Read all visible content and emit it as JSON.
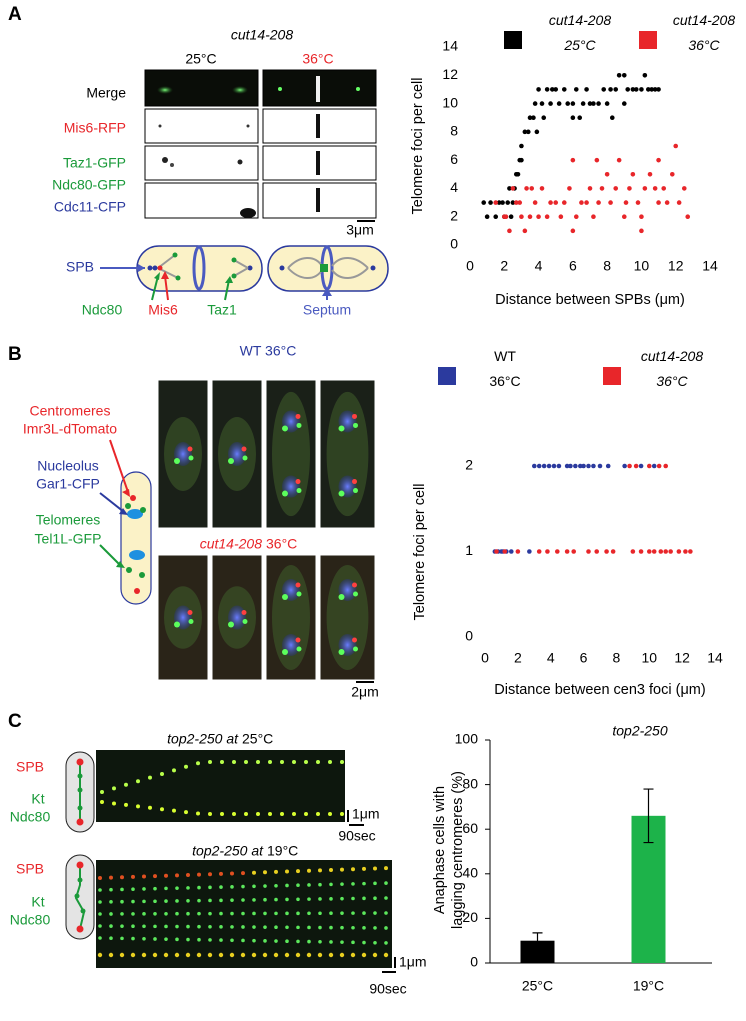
{
  "panel_labels": [
    "A",
    "B",
    "C"
  ],
  "panel_a": {
    "strain": "cut14-208",
    "temps": [
      "25°C",
      "36°C"
    ],
    "rows": [
      "Merge",
      "Mis6-RFP",
      "Taz1-GFP",
      "Ndc80-GFP",
      "Cdc11-CFP"
    ],
    "scale_bar": "3μm",
    "diagram": {
      "spb": "SPB",
      "ndc80": "Ndc80",
      "mis6": "Mis6",
      "taz1": "Taz1",
      "septum": "Septum"
    }
  },
  "panel_b": {
    "wt_title": "WT 36°C",
    "mutant_strain": "cut14-208",
    "mutant_temp": "36°C",
    "labels": [
      "Centromeres",
      "Imr3L-dTomato",
      "Nucleolus",
      "Gar1-CFP",
      "Telomeres",
      "Tel1L-GFP"
    ],
    "scale_bar": "2μm"
  },
  "panel_c": {
    "diagrams": [
      {
        "spb": "SPB",
        "kt": "Kt",
        "ndc80": "Ndc80"
      },
      {
        "spb": "SPB",
        "kt": "Kt",
        "ndc80": "Ndc80"
      }
    ],
    "kymographs": [
      {
        "title": "top2-250 at",
        "temp": "25°C",
        "scale_space": "1μm",
        "scale_time": "90sec"
      },
      {
        "title": "top2-250 at",
        "temp": "19°C",
        "scale_space": "1μm",
        "scale_time": "90sec"
      }
    ]
  },
  "chart_data": [
    {
      "type": "scatter",
      "x_label": "Distance between SPBs (μm)",
      "y_label": "Telomere foci per cell",
      "xlim": [
        0,
        14
      ],
      "xticks": [
        0,
        2,
        4,
        6,
        8,
        10,
        12,
        14
      ],
      "ylim": [
        0,
        14
      ],
      "yticks": [
        0,
        2,
        4,
        6,
        8,
        10,
        12,
        14
      ],
      "series": [
        {
          "name": "cut14-208 25°C",
          "color": "#000000",
          "x": [
            0.8,
            1,
            1.2,
            1.5,
            1.7,
            1.9,
            2,
            2.2,
            2.3,
            2.4,
            2.5,
            2.6,
            2.7,
            2.8,
            2.9,
            3,
            3,
            3.2,
            3.4,
            3.5,
            3.7,
            3.8,
            3.9,
            4,
            4.2,
            4.3,
            4.5,
            4.7,
            4.8,
            5,
            5.2,
            5.5,
            5.7,
            6,
            6,
            6.2,
            6.4,
            6.6,
            6.8,
            7,
            7.2,
            7.5,
            7.8,
            8,
            8.2,
            8.3,
            8.5,
            8.7,
            9,
            9,
            9.2,
            9.5,
            9.7,
            10,
            10.2,
            10.4,
            10.6,
            10.8,
            11
          ],
          "values": [
            3,
            2,
            3,
            2,
            3,
            3,
            2,
            3,
            4,
            2,
            3,
            4,
            5,
            5,
            6,
            6,
            7,
            8,
            8,
            9,
            9,
            10,
            8,
            11,
            10,
            9,
            11,
            10,
            11,
            11,
            10,
            11,
            10,
            9,
            10,
            11,
            9,
            10,
            11,
            10,
            10,
            10,
            11,
            10,
            11,
            9,
            11,
            12,
            12,
            10,
            11,
            11,
            11,
            11,
            12,
            11,
            11,
            11,
            11
          ]
        },
        {
          "name": "cut14-208 36°C",
          "color": "#e8262a",
          "x": [
            1.5,
            2,
            2.1,
            2.3,
            2.5,
            2.7,
            2.9,
            3,
            3.2,
            3.3,
            3.5,
            3.6,
            3.8,
            4,
            4.2,
            4.5,
            4.7,
            5,
            5.3,
            5.5,
            5.8,
            6,
            6,
            6.2,
            6.5,
            6.8,
            7,
            7.2,
            7.4,
            7.5,
            7.7,
            8,
            8.2,
            8.5,
            8.7,
            9,
            9.1,
            9.3,
            9.5,
            9.8,
            10,
            10,
            10.2,
            10.5,
            10.8,
            11,
            11,
            11.3,
            11.5,
            11.8,
            12,
            12.2,
            12.5,
            12.7
          ],
          "values": [
            3,
            2,
            2,
            1,
            4,
            3,
            3,
            2,
            1,
            4,
            2,
            4,
            3,
            2,
            4,
            2,
            3,
            3,
            2,
            3,
            4,
            1,
            6,
            2,
            3,
            3,
            4,
            2,
            6,
            3,
            4,
            5,
            3,
            4,
            6,
            2,
            3,
            4,
            5,
            3,
            2,
            1,
            4,
            5,
            4,
            6,
            3,
            4,
            3,
            5,
            7,
            3,
            4,
            2
          ]
        }
      ]
    },
    {
      "type": "scatter",
      "x_label": "Distance between cen3 foci (μm)",
      "y_label": "Telomere foci per cell",
      "xlim": [
        0,
        14
      ],
      "xticks": [
        0,
        2,
        4,
        6,
        8,
        10,
        12,
        14
      ],
      "ylim": [
        0,
        2
      ],
      "yticks": [
        0,
        1,
        2
      ],
      "series": [
        {
          "name": "WT 36°C",
          "color": "#2b3a9e",
          "x": [
            0.6,
            0.8,
            1,
            1.1,
            1.3,
            1.6,
            2.7,
            3,
            3.3,
            3.6,
            3.9,
            4.2,
            4.5,
            5,
            5.2,
            5.5,
            5.8,
            6,
            6.3,
            6.6,
            7,
            7.5,
            8.5,
            9.5,
            10.3
          ],
          "values": [
            1,
            1,
            1,
            1,
            1,
            1,
            1,
            2,
            2,
            2,
            2,
            2,
            2,
            2,
            2,
            2,
            2,
            2,
            2,
            2,
            2,
            2,
            2,
            2,
            2
          ]
        },
        {
          "name": "cut14-208 36°C",
          "color": "#e8262a",
          "x": [
            0.7,
            1.2,
            2,
            3.3,
            3.8,
            4.4,
            5,
            5.4,
            6.3,
            6.8,
            7.4,
            7.8,
            9,
            9.5,
            10,
            10.3,
            10.7,
            11,
            11.3,
            11.8,
            12.2,
            12.5,
            8.8,
            9.2,
            10,
            10.6,
            11
          ],
          "values": [
            1,
            1,
            1,
            1,
            1,
            1,
            1,
            1,
            1,
            1,
            1,
            1,
            1,
            1,
            1,
            1,
            1,
            1,
            1,
            1,
            1,
            1,
            2,
            2,
            2,
            2,
            2
          ]
        }
      ]
    },
    {
      "type": "bar",
      "title": "top2-250",
      "y_label": [
        "Anaphase cells with",
        "lagging centromeres (%)"
      ],
      "categories": [
        "25°C",
        "19°C"
      ],
      "values": [
        10,
        66
      ],
      "errors": [
        3.5,
        12
      ],
      "colors": [
        "#000000",
        "#1db34a"
      ],
      "ylim": [
        0,
        100
      ],
      "yticks": [
        0,
        20,
        40,
        60,
        80,
        100
      ]
    }
  ]
}
